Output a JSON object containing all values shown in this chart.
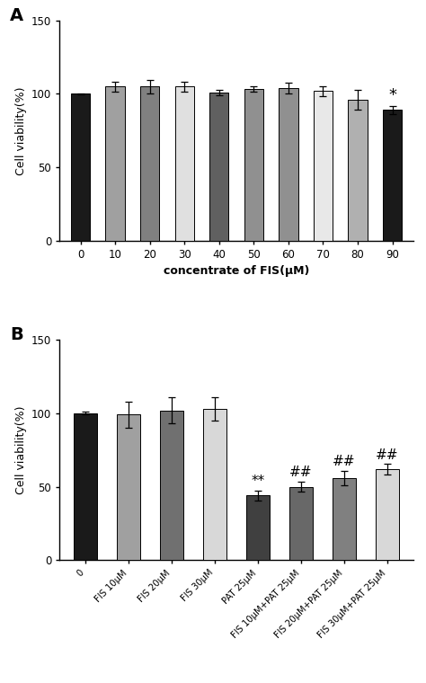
{
  "A": {
    "categories": [
      "0",
      "10",
      "20",
      "30",
      "40",
      "50",
      "60",
      "70",
      "80",
      "90"
    ],
    "values": [
      100,
      105,
      105,
      105,
      101,
      103.5,
      104,
      102,
      96,
      89
    ],
    "errors": [
      0.5,
      3.5,
      4.5,
      3.5,
      2.0,
      2.0,
      3.5,
      3.5,
      7.0,
      3.0
    ],
    "colors": [
      "#1a1a1a",
      "#a0a0a0",
      "#808080",
      "#e0e0e0",
      "#606060",
      "#909090",
      "#909090",
      "#e8e8e8",
      "#b0b0b0",
      "#1a1a1a"
    ],
    "ylabel": "Cell viability(%)",
    "xlabel": "concentrate of FIS(μM)",
    "ylim": [
      0,
      150
    ],
    "yticks": [
      0,
      50,
      100,
      150
    ],
    "significance": [
      {
        "bar": 9,
        "text": "*",
        "fontsize": 13
      }
    ]
  },
  "B": {
    "categories": [
      "0",
      "FIS 10μM",
      "FIS 20μM",
      "FIS 30μM",
      "PAT 25μM",
      "FIS 10μM+PAT 25μM",
      "FIS 20μM+PAT 25μM",
      "FIS 30μM+PAT 25μM"
    ],
    "values": [
      100,
      99,
      102,
      103,
      44,
      50,
      56,
      62
    ],
    "errors": [
      1.0,
      9.0,
      9.0,
      8.0,
      3.5,
      3.5,
      5.0,
      3.5
    ],
    "colors": [
      "#1a1a1a",
      "#a0a0a0",
      "#707070",
      "#d8d8d8",
      "#404040",
      "#686868",
      "#808080",
      "#d8d8d8"
    ],
    "ylabel": "Cell viability(%)",
    "xlabel": "",
    "ylim": [
      0,
      150
    ],
    "yticks": [
      0,
      50,
      100,
      150
    ],
    "significance": [
      {
        "bar": 4,
        "text": "**",
        "fontsize": 11
      },
      {
        "bar": 5,
        "text": "##",
        "fontsize": 11
      },
      {
        "bar": 6,
        "text": "##",
        "fontsize": 11
      },
      {
        "bar": 7,
        "text": "##",
        "fontsize": 11
      }
    ]
  },
  "panel_label_fontsize": 14,
  "axis_fontsize": 9,
  "tick_fontsize": 8.5,
  "bar_width": 0.55,
  "capsize": 3
}
